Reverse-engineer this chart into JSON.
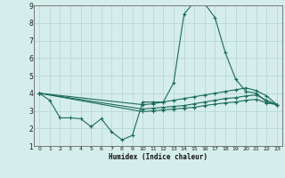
{
  "xlabel": "Humidex (Indice chaleur)",
  "background_color": "#d5eeec",
  "grid_color": "#b8d8d4",
  "line_color": "#1a6b5a",
  "xlim": [
    -0.5,
    23.5
  ],
  "ylim": [
    1,
    9
  ],
  "yticks": [
    1,
    2,
    3,
    4,
    5,
    6,
    7,
    8,
    9
  ],
  "xticks": [
    0,
    1,
    2,
    3,
    4,
    5,
    6,
    7,
    8,
    9,
    10,
    11,
    12,
    13,
    14,
    15,
    16,
    17,
    18,
    19,
    20,
    21,
    22,
    23
  ],
  "series": [
    {
      "x": [
        0,
        1,
        2,
        3,
        4,
        5,
        6,
        7,
        8,
        9,
        10,
        11,
        12,
        13,
        14,
        15,
        16,
        17,
        18,
        19,
        20,
        21,
        22,
        23
      ],
      "y": [
        4.0,
        3.6,
        2.6,
        2.6,
        2.55,
        2.1,
        2.55,
        1.8,
        1.35,
        1.6,
        3.5,
        3.5,
        3.5,
        4.6,
        8.5,
        9.2,
        9.1,
        8.3,
        6.3,
        4.8,
        4.1,
        4.0,
        3.5,
        3.35
      ]
    },
    {
      "x": [
        0,
        10,
        11,
        12,
        13,
        14,
        15,
        16,
        17,
        18,
        19,
        20,
        21,
        22,
        23
      ],
      "y": [
        4.0,
        3.35,
        3.4,
        3.5,
        3.6,
        3.7,
        3.8,
        3.9,
        4.0,
        4.1,
        4.2,
        4.3,
        4.15,
        3.85,
        3.35
      ]
    },
    {
      "x": [
        0,
        10,
        11,
        12,
        13,
        14,
        15,
        16,
        17,
        18,
        19,
        20,
        21,
        22,
        23
      ],
      "y": [
        4.0,
        3.1,
        3.15,
        3.2,
        3.25,
        3.3,
        3.4,
        3.5,
        3.6,
        3.7,
        3.75,
        3.85,
        3.9,
        3.6,
        3.35
      ]
    },
    {
      "x": [
        0,
        10,
        11,
        12,
        13,
        14,
        15,
        16,
        17,
        18,
        19,
        20,
        21,
        22,
        23
      ],
      "y": [
        4.0,
        2.95,
        3.0,
        3.05,
        3.1,
        3.15,
        3.2,
        3.3,
        3.38,
        3.45,
        3.5,
        3.6,
        3.65,
        3.45,
        3.35
      ]
    }
  ]
}
